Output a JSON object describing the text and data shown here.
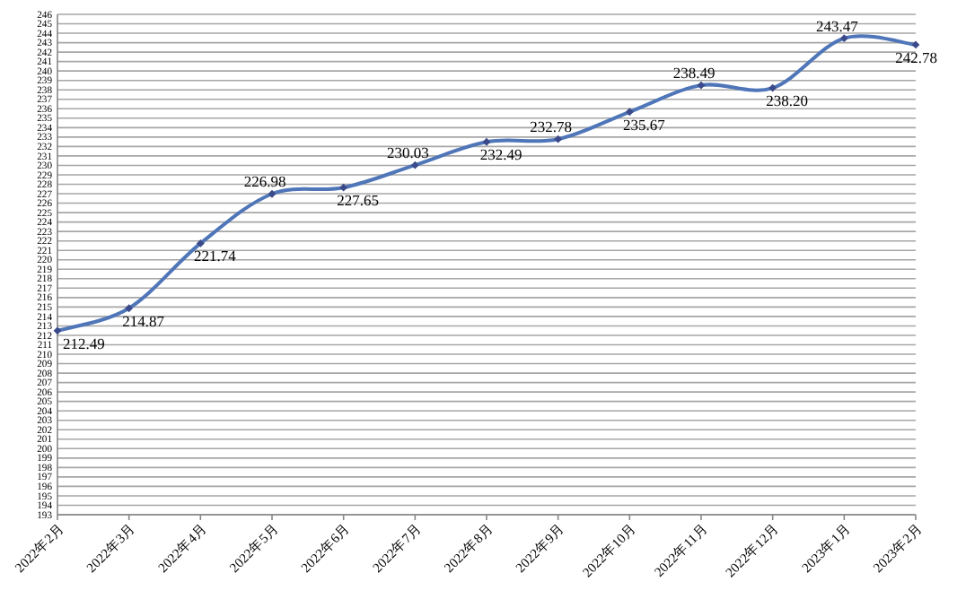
{
  "chart_data": {
    "type": "line",
    "categories": [
      "2022年2月",
      "2022年3月",
      "2022年4月",
      "2022年5月",
      "2022年6月",
      "2022年7月",
      "2022年8月",
      "2022年9月",
      "2022年10月",
      "2022年11月",
      "2022年12月",
      "2023年1月",
      "2023年2月"
    ],
    "series": [
      {
        "color": "#4f76b8",
        "values": [
          212.49,
          214.87,
          221.74,
          226.98,
          227.65,
          230.03,
          232.49,
          232.78,
          235.67,
          238.49,
          238.2,
          243.47,
          242.78
        ]
      }
    ],
    "value_labels": [
      "212.49",
      "214.87",
      "221.74",
      "226.98",
      "227.65",
      "230.03",
      "232.49",
      "232.78",
      "235.67",
      "238.49",
      "238.20",
      "243.47",
      "242.78"
    ],
    "ylim": [
      193,
      246
    ],
    "yticks": [
      193,
      194,
      195,
      196,
      197,
      198,
      199,
      200,
      201,
      202,
      203,
      204,
      205,
      206,
      207,
      208,
      209,
      210,
      211,
      212,
      213,
      214,
      215,
      216,
      217,
      218,
      219,
      220,
      221,
      222,
      223,
      224,
      225,
      226,
      227,
      228,
      229,
      230,
      231,
      232,
      233,
      234,
      235,
      236,
      237,
      238,
      239,
      240,
      241,
      242,
      243,
      244,
      245,
      246
    ],
    "grid": "y",
    "marker": "diamond",
    "line_style": "solid"
  }
}
